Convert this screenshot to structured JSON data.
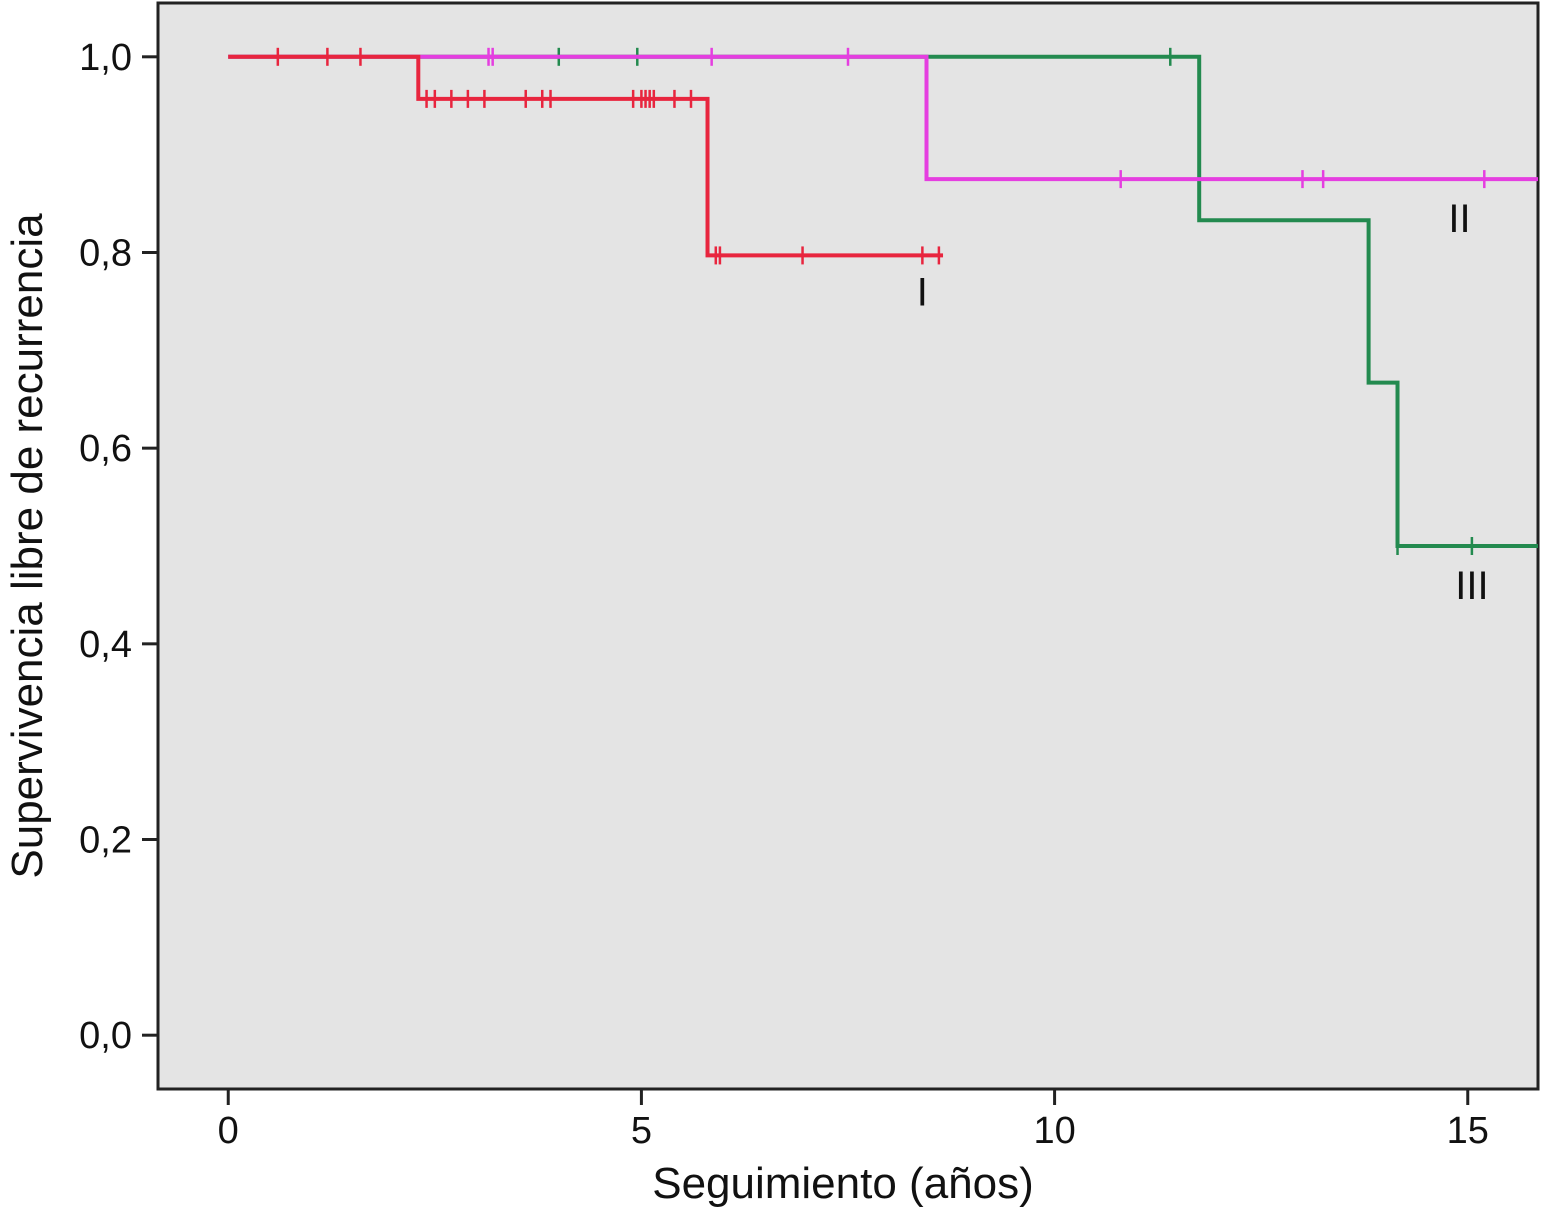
{
  "chart_data": {
    "type": "line",
    "title": "",
    "xlabel": "Seguimiento (años)",
    "ylabel": "Supervivencia libre de recurrencia",
    "xlim": [
      -0.85,
      15.85
    ],
    "ylim": [
      -0.055,
      1.055
    ],
    "x_ticks": [
      {
        "value": 0,
        "label": "0"
      },
      {
        "value": 5,
        "label": "5"
      },
      {
        "value": 10,
        "label": "10"
      },
      {
        "value": 15,
        "label": "15"
      }
    ],
    "y_ticks": [
      {
        "value": 0.0,
        "label": "0,0"
      },
      {
        "value": 0.2,
        "label": "0,2"
      },
      {
        "value": 0.4,
        "label": "0,4"
      },
      {
        "value": 0.6,
        "label": "0,6"
      },
      {
        "value": 0.8,
        "label": "0,8"
      },
      {
        "value": 1.0,
        "label": "1,0"
      }
    ],
    "grid": false,
    "plot_background": "#e4e4e4",
    "series": [
      {
        "name": "I",
        "label_anchor": {
          "x": 8.4,
          "y": 0.76
        },
        "color": "#e8253e",
        "steps": [
          [
            0,
            1.0
          ],
          [
            2.3,
            0.957
          ],
          [
            5.8,
            0.797
          ],
          [
            8.65,
            0.797
          ]
        ],
        "censored": [
          {
            "x": 0.6,
            "y": 1.0
          },
          {
            "x": 1.2,
            "y": 1.0
          },
          {
            "x": 1.6,
            "y": 1.0
          },
          {
            "x": 2.4,
            "y": 0.957
          },
          {
            "x": 2.5,
            "y": 0.957
          },
          {
            "x": 2.7,
            "y": 0.957
          },
          {
            "x": 2.9,
            "y": 0.957
          },
          {
            "x": 3.1,
            "y": 0.957
          },
          {
            "x": 3.6,
            "y": 0.957
          },
          {
            "x": 3.8,
            "y": 0.957
          },
          {
            "x": 3.9,
            "y": 0.957
          },
          {
            "x": 4.9,
            "y": 0.957
          },
          {
            "x": 5.0,
            "y": 0.957
          },
          {
            "x": 5.05,
            "y": 0.957
          },
          {
            "x": 5.1,
            "y": 0.957
          },
          {
            "x": 5.15,
            "y": 0.957
          },
          {
            "x": 5.4,
            "y": 0.957
          },
          {
            "x": 5.6,
            "y": 0.957
          },
          {
            "x": 5.9,
            "y": 0.797
          },
          {
            "x": 5.95,
            "y": 0.797
          },
          {
            "x": 6.95,
            "y": 0.797
          },
          {
            "x": 8.4,
            "y": 0.797
          },
          {
            "x": 8.6,
            "y": 0.797
          }
        ]
      },
      {
        "name": "II",
        "label_anchor": {
          "x": 14.9,
          "y": 0.835
        },
        "color": "#e53ee0",
        "steps": [
          [
            0,
            1.0
          ],
          [
            8.45,
            0.875
          ],
          [
            15.85,
            0.875
          ]
        ],
        "censored": [
          {
            "x": 3.15,
            "y": 1.0
          },
          {
            "x": 3.2,
            "y": 1.0
          },
          {
            "x": 5.85,
            "y": 1.0
          },
          {
            "x": 7.5,
            "y": 1.0
          },
          {
            "x": 10.8,
            "y": 0.875
          },
          {
            "x": 13.0,
            "y": 0.875
          },
          {
            "x": 13.25,
            "y": 0.875
          },
          {
            "x": 15.2,
            "y": 0.875
          }
        ]
      },
      {
        "name": "III",
        "label_anchor": {
          "x": 15.05,
          "y": 0.46
        },
        "color": "#238a4f",
        "steps": [
          [
            0,
            1.0
          ],
          [
            11.75,
            0.833
          ],
          [
            13.8,
            0.667
          ],
          [
            14.15,
            0.5
          ],
          [
            15.85,
            0.5
          ]
        ],
        "censored": [
          {
            "x": 4.0,
            "y": 1.0
          },
          {
            "x": 4.95,
            "y": 1.0
          },
          {
            "x": 11.4,
            "y": 1.0
          },
          {
            "x": 14.15,
            "y": 0.5
          },
          {
            "x": 15.05,
            "y": 0.5
          }
        ]
      }
    ]
  }
}
